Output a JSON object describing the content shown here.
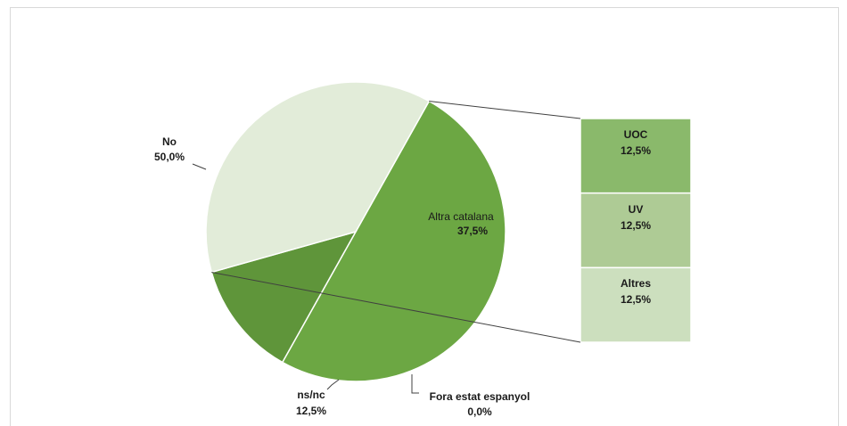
{
  "chart_data": {
    "type": "bar-of-pie",
    "pie": {
      "slices": [
        {
          "name": "No",
          "value": 50.0,
          "label": "50,0%",
          "color": "#6ca743"
        },
        {
          "name": "ns/nc",
          "value": 12.5,
          "label": "12,5%",
          "color": "#5f953a"
        },
        {
          "name": "Fora estat espanyol",
          "value": 0.0,
          "label": "0,0%",
          "color": "#4f7f31"
        },
        {
          "name": "Altra catalana",
          "value": 37.5,
          "label": "37,5%",
          "color": "#e2ecd9"
        }
      ]
    },
    "breakdown": {
      "of": "Altra catalana",
      "items": [
        {
          "name": "UOC",
          "value": 12.5,
          "label": "12,5%",
          "color": "#8ab96b"
        },
        {
          "name": "UV",
          "value": 12.5,
          "label": "12,5%",
          "color": "#aecb95"
        },
        {
          "name": "Altres",
          "value": 12.5,
          "label": "12,5%",
          "color": "#ccdfbe"
        }
      ]
    }
  }
}
